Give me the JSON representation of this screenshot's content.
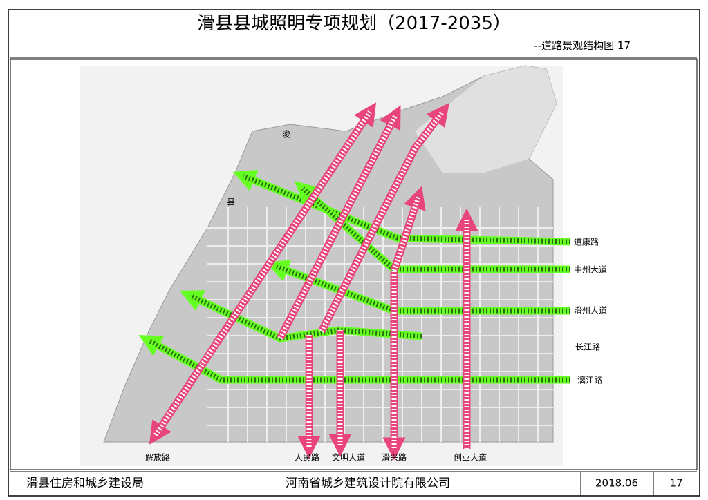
{
  "header": {
    "title": "滑县县城照明专项规划（2017-2035）",
    "subtitle": "--道路景观结构图 17"
  },
  "map": {
    "place_labels": [
      "浚",
      "县"
    ],
    "roads": [
      "道康路",
      "中州大道",
      "滑州大道",
      "长江路",
      "漓江路",
      "解放路",
      "人民路",
      "文明大道",
      "滑兴路",
      "创业大道"
    ]
  },
  "footer": {
    "client": "滑县住房和城乡建设局",
    "designer": "河南省城乡建筑设计院有限公司",
    "date": "2018.06",
    "page": "17"
  }
}
